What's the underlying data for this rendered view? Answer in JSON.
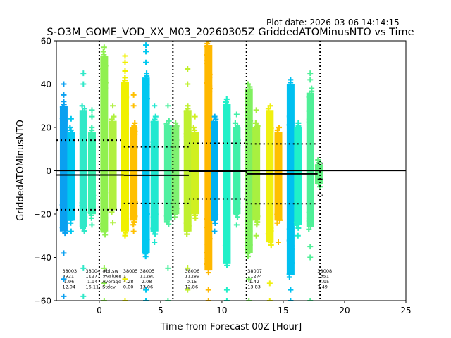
{
  "chart_data": {
    "type": "scatter",
    "plot_date": "Plot date: 2026-03-06 14:14:15",
    "title": "S-O3M_GOME_VOD_XX_M03_20260305Z GriddedATOMinusNTO vs Time",
    "xlabel": "Time from Forecast 00Z [Hour]",
    "ylabel": "GriddedATOMinusNTO",
    "xlim": [
      -3.5,
      25
    ],
    "ylim": [
      -60,
      60
    ],
    "xticks": [
      0,
      5,
      10,
      15,
      20,
      25
    ],
    "yticks": [
      -60,
      -40,
      -20,
      0,
      20,
      40,
      60
    ],
    "zero_line": 0,
    "cycle_boundaries": [
      0,
      6,
      12,
      18
    ],
    "bands": [
      {
        "x": -2.9,
        "color": "#0aa0f0",
        "core": [
          -30,
          32
        ],
        "outliers": [
          40,
          35,
          -38,
          -50,
          -58
        ]
      },
      {
        "x": -2.3,
        "color": "#00c8f0",
        "core": [
          -25,
          20
        ],
        "outliers": [
          24,
          -28
        ]
      },
      {
        "x": -1.3,
        "color": "#30e8c8",
        "core": [
          -28,
          30
        ],
        "outliers": [
          45,
          40,
          -45,
          -58
        ]
      },
      {
        "x": -0.6,
        "color": "#3cf0b0",
        "core": [
          -22,
          20
        ],
        "outliers": [
          28,
          25,
          -25
        ]
      },
      {
        "x": 0.4,
        "color": "#90f050",
        "core": [
          -30,
          55
        ],
        "outliers": [
          57,
          -45,
          -52,
          -60
        ]
      },
      {
        "x": 1.1,
        "color": "#b0f040",
        "core": [
          -20,
          25
        ],
        "outliers": [
          30,
          -24
        ]
      },
      {
        "x": 2.1,
        "color": "#f0f000",
        "core": [
          -30,
          43
        ],
        "outliers": [
          53,
          50,
          46,
          -50,
          -60
        ]
      },
      {
        "x": 2.8,
        "color": "#ffc000",
        "core": [
          -25,
          22
        ],
        "outliers": [
          35,
          30,
          -28
        ]
      },
      {
        "x": 3.8,
        "color": "#00c8f0",
        "core": [
          -40,
          45
        ],
        "outliers": [
          58,
          55,
          50,
          -55,
          -60
        ]
      },
      {
        "x": 4.5,
        "color": "#20e8d0",
        "core": [
          -30,
          25
        ],
        "outliers": [
          30,
          -33
        ]
      },
      {
        "x": 5.6,
        "color": "#50f0a0",
        "core": [
          -25,
          23
        ],
        "outliers": [
          30,
          -45,
          -60
        ]
      },
      {
        "x": 6.2,
        "color": "#80f070",
        "core": [
          -22,
          22
        ],
        "outliers": []
      },
      {
        "x": 7.2,
        "color": "#c0f030",
        "core": [
          -30,
          30
        ],
        "outliers": [
          47,
          40,
          -45,
          -55
        ]
      },
      {
        "x": 7.8,
        "color": "#d0f020",
        "core": [
          -22,
          20
        ],
        "outliers": [
          25
        ]
      },
      {
        "x": 8.9,
        "color": "#ffb800",
        "core": [
          -48,
          60
        ],
        "outliers": [
          -55,
          -60
        ]
      },
      {
        "x": 9.4,
        "color": "#00b0f0",
        "core": [
          -25,
          25
        ],
        "outliers": [
          -28
        ]
      },
      {
        "x": 10.4,
        "color": "#20f0c8",
        "core": [
          -45,
          33
        ],
        "outliers": [
          -55,
          -60
        ]
      },
      {
        "x": 11.2,
        "color": "#40f0a8",
        "core": [
          -22,
          22
        ],
        "outliers": [
          26,
          -25
        ]
      },
      {
        "x": 12.2,
        "color": "#80f060",
        "core": [
          -40,
          40
        ],
        "outliers": [
          -50,
          -60
        ]
      },
      {
        "x": 12.8,
        "color": "#a8f040",
        "core": [
          -25,
          22
        ],
        "outliers": [
          28,
          -30
        ]
      },
      {
        "x": 13.9,
        "color": "#f0f010",
        "core": [
          -35,
          30
        ],
        "outliers": [
          -52,
          -60
        ]
      },
      {
        "x": 14.6,
        "color": "#ffc000",
        "core": [
          -25,
          20
        ],
        "outliers": [
          -33
        ]
      },
      {
        "x": 15.6,
        "color": "#00c0f0",
        "core": [
          -50,
          42
        ],
        "outliers": [
          -55,
          -60
        ]
      },
      {
        "x": 16.2,
        "color": "#20f0c8",
        "core": [
          -27,
          22
        ],
        "outliers": [
          -30
        ]
      },
      {
        "x": 17.2,
        "color": "#50f098",
        "core": [
          -28,
          38
        ],
        "outliers": [
          45,
          42,
          -35,
          -40,
          -60
        ]
      },
      {
        "x": 17.9,
        "color": "#60f080",
        "core": [
          -8,
          5
        ],
        "outliers": []
      }
    ],
    "segments": [
      {
        "x0": -3.5,
        "x1": 2.0,
        "mean": -1.96,
        "upper": 14.1,
        "lower": -18.0
      },
      {
        "x0": 2.0,
        "x1": 7.3,
        "mean": -2.08,
        "upper": 11.0,
        "lower": -15.1
      },
      {
        "x0": 7.3,
        "x1": 12.0,
        "mean": -0.15,
        "upper": 12.7,
        "lower": -13.0
      },
      {
        "x0": 12.0,
        "x1": 17.8,
        "mean": -1.42,
        "upper": 12.4,
        "lower": -15.2
      },
      {
        "x0": 17.8,
        "x1": 18.2,
        "mean": -3.95,
        "upper": 3.5,
        "lower": -11.4
      }
    ],
    "annotations": [
      {
        "x": -2.9,
        "lines": [
          "38003",
          "4921",
          "-1.96",
          "12.04"
        ]
      },
      {
        "x": -1.0,
        "lines": [
          "38004",
          "11277",
          "-1.94",
          "16.11"
        ]
      },
      {
        "x": -1.0,
        "lines": [
          "#bitsw",
          "#Values",
          "Average",
          "Stdev"
        ]
      },
      {
        "x": -0.4,
        "lines": [
          "38005",
          "1",
          "4.28",
          "0.00"
        ]
      },
      {
        "x": 2.1,
        "lines": [
          "38005",
          "11280",
          "-2.08",
          "13.06"
        ]
      },
      {
        "x": 7.1,
        "lines": [
          "38006",
          "11289",
          "-0.15",
          "12.86"
        ]
      },
      {
        "x": 12.2,
        "lines": [
          "38007",
          "11274",
          "-1.42",
          "13.83"
        ]
      },
      {
        "x": 17.9,
        "lines": [
          "38008",
          "1351",
          "-3.95",
          "7.49"
        ]
      }
    ]
  }
}
